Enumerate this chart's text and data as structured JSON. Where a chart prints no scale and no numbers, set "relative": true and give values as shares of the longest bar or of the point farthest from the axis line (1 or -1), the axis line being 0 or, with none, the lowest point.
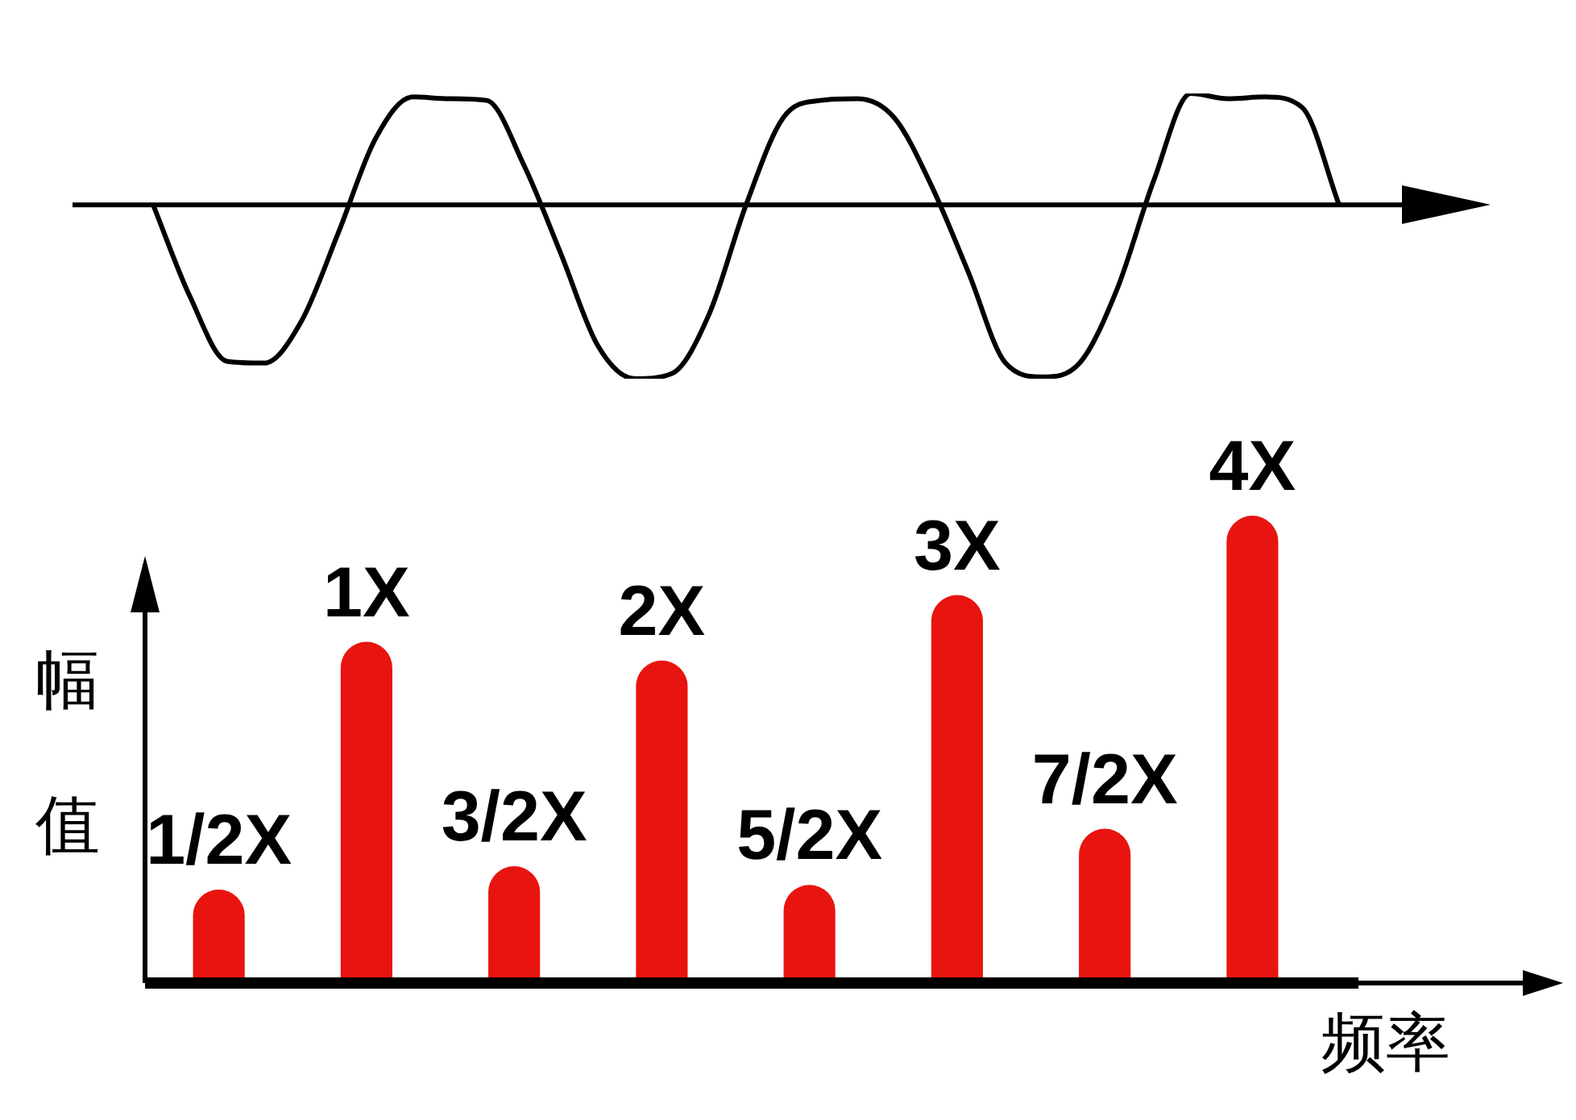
{
  "chart_data": [
    {
      "type": "line",
      "relative": true,
      "marker": "none",
      "color": "#000000",
      "categories": [
        null,
        null,
        null,
        null,
        null,
        null,
        null,
        null,
        null,
        null,
        null,
        null,
        null,
        null,
        null,
        null,
        null,
        null,
        null,
        null,
        null,
        null,
        null,
        null,
        null,
        null,
        null,
        null,
        null,
        null,
        null,
        null,
        null
      ],
      "values": [
        0,
        -0.53,
        -0.9,
        -0.91,
        -0.67,
        -0.16,
        0.38,
        0.62,
        0.61,
        0.6,
        0.23,
        -0.28,
        -0.81,
        -1,
        -0.97,
        -0.63,
        0,
        0.5,
        0.6,
        0.61,
        0.5,
        0.11,
        -0.39,
        -0.91,
        -0.99,
        -0.91,
        -0.49,
        0.14,
        0.64,
        0.61,
        0.62,
        0.56,
        0
      ]
    },
    {
      "type": "bar",
      "relative": true,
      "xlabel": "频率",
      "ylabel": "幅值",
      "categories": [
        "1/2X",
        "1X",
        "3/2X",
        "2X",
        "5/2X",
        "3X",
        "7/2X",
        "4X"
      ],
      "values": [
        0.2,
        0.73,
        0.25,
        0.69,
        0.21,
        0.83,
        0.33,
        1
      ],
      "color": "#e8140f"
    }
  ]
}
